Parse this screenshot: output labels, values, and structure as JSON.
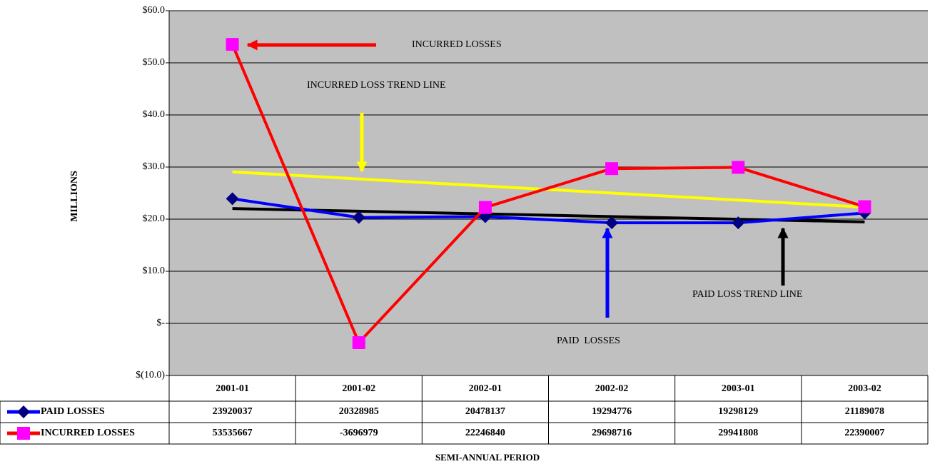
{
  "chart_data": {
    "type": "line",
    "ylabel": "MILLIONS",
    "xlabel": "SEMI-ANNUAL PERIOD",
    "categories": [
      "2001-01",
      "2001-02",
      "2002-01",
      "2002-02",
      "2003-01",
      "2003-02"
    ],
    "series": [
      {
        "name": "PAID LOSSES",
        "color": "#0000ff",
        "marker": "diamond",
        "marker_color": "#000080",
        "values": [
          23.920037,
          20.328985,
          20.478137,
          19.294776,
          19.298129,
          21.189078
        ],
        "value_labels": [
          "23920037",
          "20328985",
          "20478137",
          "19294776",
          "19298129",
          "21189078"
        ]
      },
      {
        "name": "INCURRED LOSSES",
        "color": "#ff0000",
        "marker": "square",
        "marker_color": "#ff00ff",
        "values": [
          53.535667,
          -3.696979,
          22.24684,
          29.698716,
          29.941808,
          22.390007
        ],
        "value_labels": [
          "53535667",
          "-3696979",
          "22246840",
          "29698716",
          "29941808",
          "22390007"
        ]
      }
    ],
    "trend_lines": [
      {
        "label": "INCURRED LOSS TREND LINE",
        "color": "#ffff00",
        "values": [
          29.07,
          22.3
        ]
      },
      {
        "label": "PAID LOSS TREND LINE",
        "color": "#000000",
        "values": [
          22.03,
          19.47
        ]
      }
    ],
    "annotations": [
      "INCURRED LOSSES",
      "PAID  LOSSES"
    ],
    "ylim": [
      -10,
      60
    ],
    "yticks": [
      {
        "value": -10,
        "label": "$(10.0)"
      },
      {
        "value": 0,
        "label": "$-"
      },
      {
        "value": 10,
        "label": "$10.0"
      },
      {
        "value": 20,
        "label": "$20.0"
      },
      {
        "value": 30,
        "label": "$30.0"
      },
      {
        "value": 40,
        "label": "$40.0"
      },
      {
        "value": 50,
        "label": "$50.0"
      },
      {
        "value": 60,
        "label": "$60.0"
      }
    ],
    "grid": true,
    "plot_background": "#c0c0c0"
  }
}
